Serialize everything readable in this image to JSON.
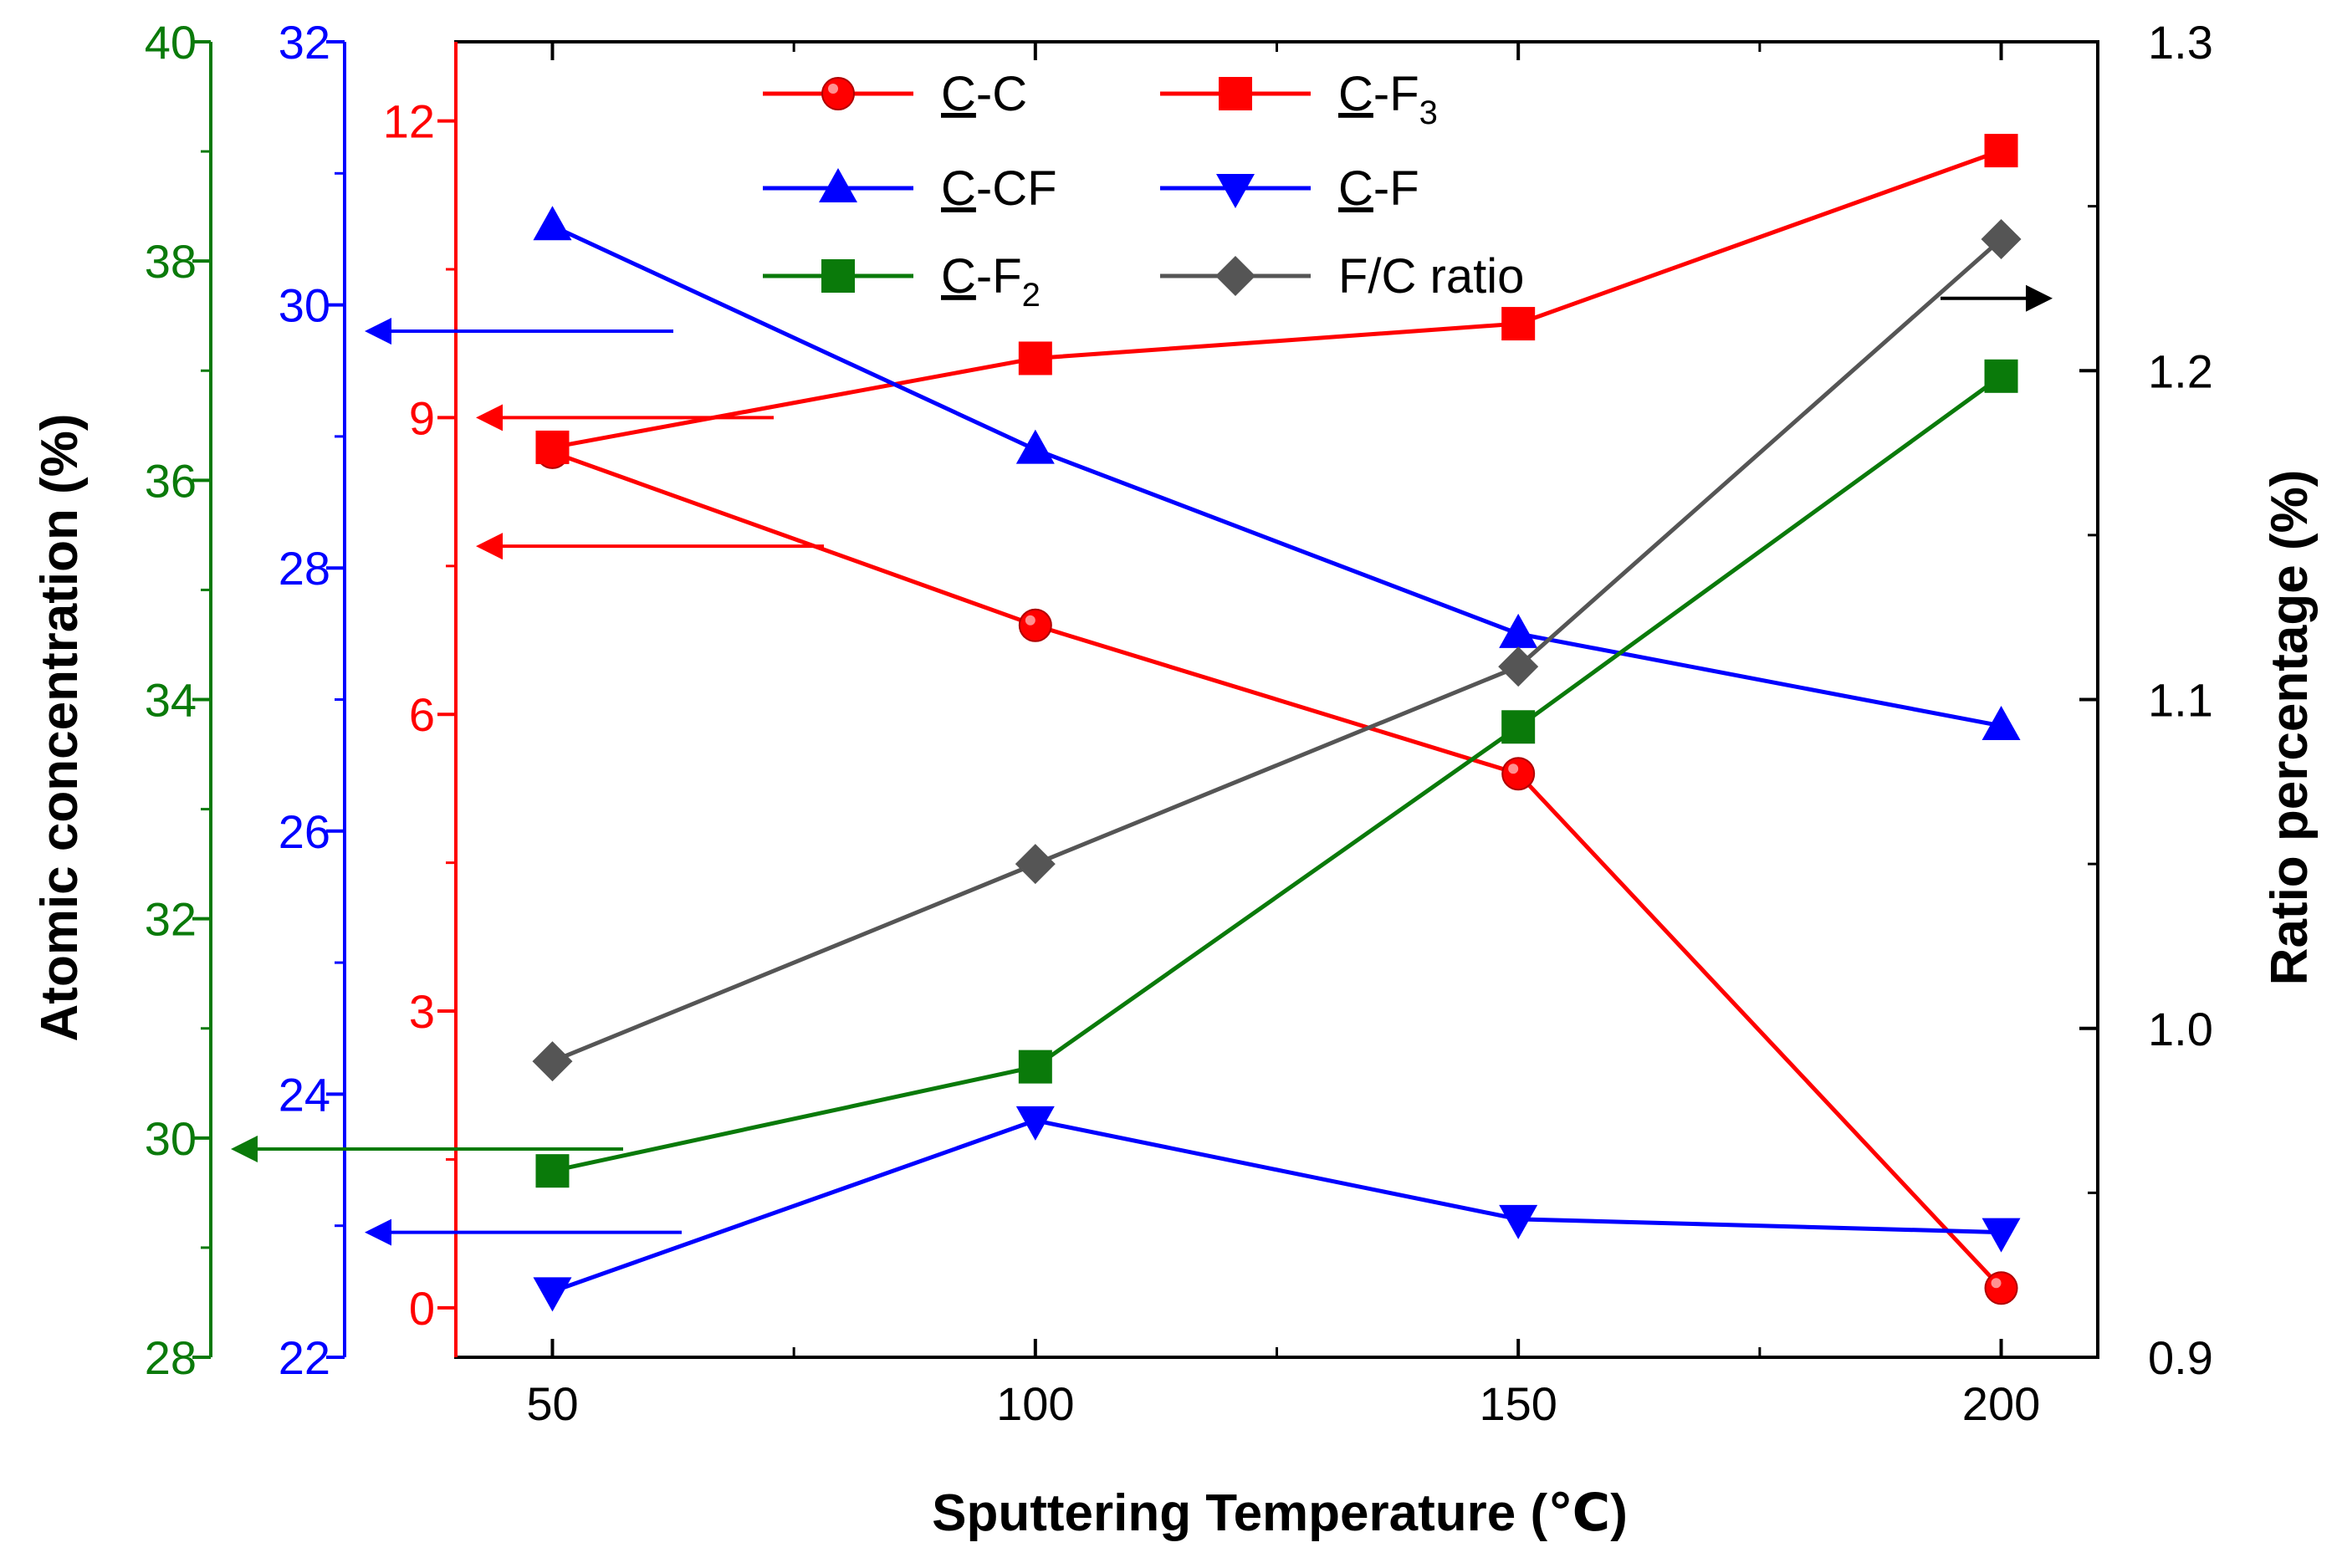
{
  "chart_data": {
    "type": "line",
    "title": "",
    "xlabel": "Sputtering Temperature (℃)",
    "x": [
      50,
      100,
      150,
      200
    ],
    "xlim": [
      40,
      210
    ],
    "xticks": [
      50,
      100,
      150,
      200
    ],
    "y_axes": {
      "green": {
        "ylim": [
          28,
          40
        ],
        "ticks": [
          28,
          30,
          32,
          34,
          36,
          38,
          40
        ],
        "color": "#0a7a0a"
      },
      "blue": {
        "ylim": [
          22,
          32
        ],
        "ticks": [
          22,
          24,
          26,
          28,
          30,
          32
        ],
        "color": "#0000ff"
      },
      "red": {
        "ylim": [
          -0.5,
          12.8
        ],
        "ticks": [
          0,
          3,
          6,
          9,
          12
        ],
        "color": "#ff0000"
      },
      "right": {
        "ylim": [
          0.9,
          1.3
        ],
        "ticks": [
          0.9,
          1.0,
          1.1,
          1.2,
          1.3
        ],
        "color": "#000000"
      }
    },
    "shared_ylabel": "Atomic concentration (%)",
    "right_ylabel": "Ratio percentage (%)",
    "series": [
      {
        "name": "C-C",
        "base": "C",
        "rest": "-C",
        "sub": "",
        "axis": "red",
        "color": "#ff0000",
        "marker": "circle",
        "values": [
          8.65,
          6.9,
          5.4,
          0.2
        ]
      },
      {
        "name": "C-F3",
        "base": "C",
        "rest": "-F",
        "sub": "3",
        "axis": "red",
        "color": "#ff0000",
        "marker": "square",
        "values": [
          8.7,
          9.6,
          9.95,
          11.7
        ]
      },
      {
        "name": "C-CF",
        "base": "C",
        "rest": "-CF",
        "sub": "",
        "axis": "blue",
        "color": "#0000ff",
        "marker": "triangle-up",
        "values": [
          30.6,
          28.9,
          27.5,
          26.8
        ]
      },
      {
        "name": "C-F",
        "base": "C",
        "rest": "-F",
        "sub": "",
        "axis": "blue",
        "color": "#0000ff",
        "marker": "triangle-down",
        "values": [
          22.5,
          23.8,
          23.05,
          22.95
        ]
      },
      {
        "name": "C-F2",
        "base": "C",
        "rest": "-F",
        "sub": "2",
        "axis": "green",
        "color": "#0a7a0a",
        "marker": "square",
        "values": [
          29.7,
          30.65,
          33.75,
          36.95
        ]
      },
      {
        "name": "F/C ratio",
        "base": "",
        "rest": "F/C ratio",
        "sub": "",
        "axis": "right",
        "color": "#555555",
        "marker": "diamond",
        "values": [
          0.99,
          1.05,
          1.11,
          1.24
        ]
      }
    ],
    "annotations": [
      {
        "series": "C-CF",
        "axis": "blue",
        "value": 29.8,
        "direction": "left"
      },
      {
        "series": "C-F",
        "axis": "blue",
        "value": 22.95,
        "direction": "left"
      },
      {
        "series": "C-F3",
        "axis": "red",
        "value": 9.0,
        "direction": "left"
      },
      {
        "series": "C-C",
        "axis": "red",
        "value": 7.7,
        "direction": "left"
      },
      {
        "series": "C-F2",
        "axis": "green",
        "value": 29.9,
        "direction": "left"
      },
      {
        "series": "F/C ratio",
        "axis": "right",
        "value": 1.222,
        "direction": "right"
      }
    ],
    "legend_position": "top"
  }
}
